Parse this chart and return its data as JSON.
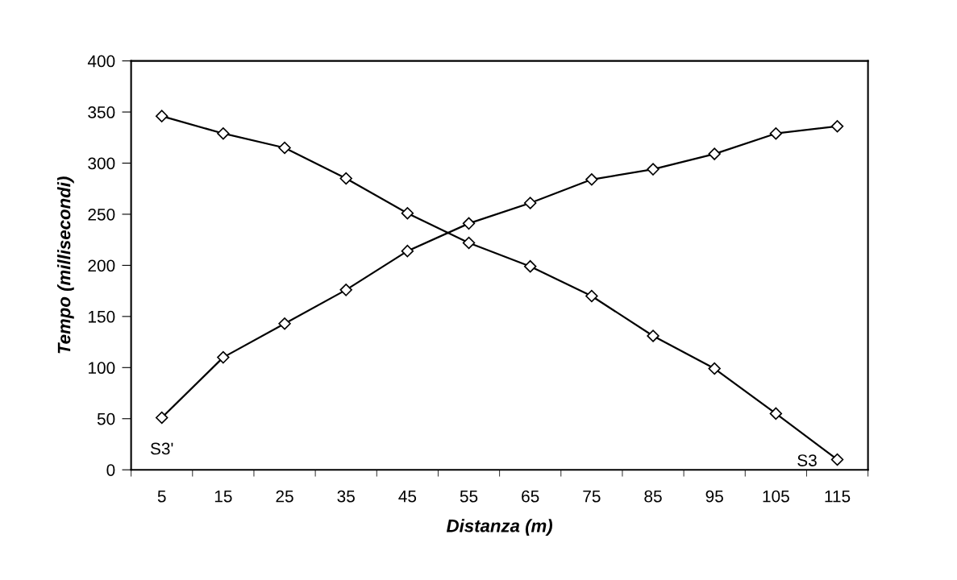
{
  "chart_data": {
    "type": "line",
    "xlabel": "Distanza (m)",
    "ylabel": "Tempo (millisecondi)",
    "categories": [
      "5",
      "15",
      "25",
      "35",
      "45",
      "55",
      "65",
      "75",
      "85",
      "95",
      "105",
      "115"
    ],
    "series": [
      {
        "name": "S3'",
        "color": "#000000",
        "values": [
          51,
          110,
          143,
          176,
          214,
          241,
          261,
          284,
          294,
          309,
          329,
          336
        ]
      },
      {
        "name": "S3",
        "color": "#000000",
        "values": [
          346,
          329,
          315,
          285,
          251,
          222,
          199,
          170,
          131,
          99,
          55,
          10
        ]
      }
    ],
    "ylim": [
      0,
      400
    ],
    "yticks": [
      0,
      50,
      100,
      150,
      200,
      250,
      300,
      350,
      400
    ],
    "grid": false,
    "legend": false,
    "marker": "diamond",
    "line_style": "solid"
  }
}
